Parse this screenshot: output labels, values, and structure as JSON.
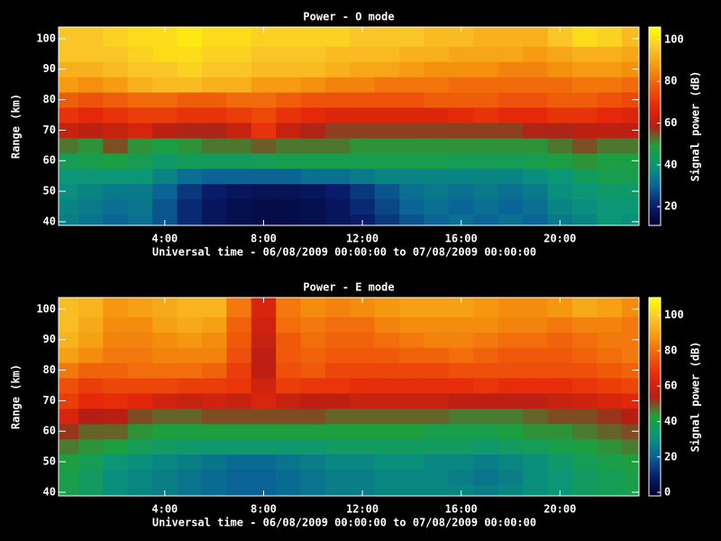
{
  "chart_data": [
    {
      "type": "heatmap",
      "title": "Power - O mode",
      "xlabel": "Universal time - 06/08/2009 00:00:00 to 07/08/2009 00:00:00",
      "ylabel": "Range (km)",
      "colorbar_label": "Signal power (dB)",
      "x": [
        0,
        1,
        2,
        3,
        4,
        5,
        6,
        7,
        8,
        9,
        10,
        11,
        12,
        13,
        14,
        15,
        16,
        17,
        18,
        19,
        20,
        21,
        22,
        23
      ],
      "y": [
        40,
        45,
        50,
        55,
        60,
        65,
        70,
        75,
        80,
        85,
        90,
        95,
        100
      ],
      "xlim": [
        -0.3,
        23.2
      ],
      "ylim": [
        38.8,
        103.8
      ],
      "xticks": [
        {
          "value": 4,
          "label": "4:00"
        },
        {
          "value": 8,
          "label": "8:00"
        },
        {
          "value": 12,
          "label": "12:00"
        },
        {
          "value": 16,
          "label": "16:00"
        },
        {
          "value": 20,
          "label": "20:00"
        }
      ],
      "yticks": [
        40,
        50,
        60,
        70,
        80,
        90,
        100
      ],
      "clim": [
        11,
        106
      ],
      "cticks": [
        20,
        40,
        60,
        80,
        100
      ],
      "colormap": [
        "#00002a",
        "#0a1e6e",
        "#0a6496",
        "#0a9678",
        "#1ea03c",
        "#b41e14",
        "#e6280a",
        "#f05a0a",
        "#f5960f",
        "#fac828",
        "#ffff00"
      ],
      "z": [
        [
          35,
          33,
          30,
          32,
          28,
          22,
          18,
          16,
          15,
          15,
          16,
          18,
          20,
          24,
          28,
          30,
          32,
          30,
          32,
          30,
          34,
          36,
          40,
          38
        ],
        [
          36,
          34,
          32,
          33,
          28,
          22,
          18,
          16,
          15,
          15,
          16,
          18,
          22,
          26,
          30,
          32,
          30,
          32,
          30,
          32,
          36,
          38,
          40,
          40
        ],
        [
          38,
          36,
          34,
          34,
          30,
          24,
          20,
          18,
          17,
          17,
          18,
          20,
          24,
          28,
          32,
          34,
          32,
          34,
          32,
          34,
          38,
          40,
          42,
          42
        ],
        [
          40,
          40,
          40,
          40,
          36,
          32,
          30,
          30,
          30,
          30,
          32,
          32,
          34,
          36,
          36,
          36,
          36,
          36,
          36,
          38,
          40,
          44,
          46,
          46
        ],
        [
          45,
          46,
          48,
          45,
          42,
          44,
          44,
          44,
          45,
          46,
          46,
          46,
          46,
          46,
          46,
          46,
          45,
          45,
          45,
          46,
          48,
          50,
          48,
          48
        ],
        [
          52,
          50,
          55,
          50,
          48,
          50,
          52,
          52,
          54,
          52,
          52,
          52,
          50,
          50,
          50,
          50,
          50,
          50,
          50,
          50,
          52,
          55,
          52,
          52
        ],
        [
          62,
          60,
          62,
          65,
          60,
          58,
          58,
          62,
          70,
          62,
          58,
          56,
          56,
          56,
          56,
          56,
          56,
          56,
          56,
          58,
          58,
          60,
          60,
          60
        ],
        [
          70,
          68,
          70,
          72,
          72,
          70,
          70,
          72,
          74,
          70,
          68,
          66,
          66,
          66,
          66,
          66,
          68,
          70,
          68,
          68,
          70,
          70,
          68,
          66
        ],
        [
          78,
          76,
          78,
          80,
          80,
          78,
          78,
          80,
          80,
          78,
          76,
          76,
          76,
          76,
          76,
          78,
          78,
          78,
          76,
          76,
          78,
          78,
          76,
          74
        ],
        [
          88,
          86,
          88,
          92,
          94,
          94,
          92,
          92,
          88,
          88,
          86,
          84,
          84,
          82,
          82,
          82,
          80,
          80,
          80,
          80,
          80,
          82,
          82,
          80
        ],
        [
          92,
          92,
          94,
          96,
          96,
          98,
          96,
          96,
          94,
          94,
          94,
          92,
          90,
          90,
          88,
          86,
          86,
          86,
          84,
          84,
          86,
          88,
          88,
          86
        ],
        [
          96,
          96,
          96,
          98,
          100,
          100,
          98,
          98,
          96,
          96,
          96,
          94,
          94,
          94,
          92,
          92,
          90,
          90,
          90,
          88,
          90,
          92,
          92,
          90
        ],
        [
          96,
          96,
          98,
          100,
          100,
          102,
          100,
          100,
          98,
          98,
          98,
          98,
          96,
          96,
          96,
          94,
          94,
          92,
          92,
          92,
          96,
          100,
          98,
          94
        ]
      ]
    },
    {
      "type": "heatmap",
      "title": "Power - E mode",
      "xlabel": "Universal time - 06/08/2009 00:00:00 to 07/08/2009 00:00:00",
      "ylabel": "Range (km)",
      "colorbar_label": "Signal power (dB)",
      "x": [
        0,
        1,
        2,
        3,
        4,
        5,
        6,
        7,
        8,
        9,
        10,
        11,
        12,
        13,
        14,
        15,
        16,
        17,
        18,
        19,
        20,
        21,
        22,
        23
      ],
      "y": [
        40,
        45,
        50,
        55,
        60,
        65,
        70,
        75,
        80,
        85,
        90,
        95,
        100
      ],
      "xlim": [
        -0.3,
        23.2
      ],
      "ylim": [
        38.8,
        103.8
      ],
      "xticks": [
        {
          "value": 4,
          "label": "4:00"
        },
        {
          "value": 8,
          "label": "8:00"
        },
        {
          "value": 12,
          "label": "12:00"
        },
        {
          "value": 16,
          "label": "16:00"
        },
        {
          "value": 20,
          "label": "20:00"
        }
      ],
      "yticks": [
        40,
        50,
        60,
        70,
        80,
        90,
        100
      ],
      "clim": [
        -2,
        110
      ],
      "cticks": [
        0,
        20,
        40,
        60,
        80,
        100
      ],
      "colormap": [
        "#00002a",
        "#0a1e6e",
        "#0a6496",
        "#0a9678",
        "#1ea03c",
        "#b41e14",
        "#e6280a",
        "#f05a0a",
        "#f5960f",
        "#fac828",
        "#ffff00"
      ],
      "z": [
        [
          40,
          36,
          30,
          28,
          26,
          24,
          22,
          20,
          20,
          22,
          24,
          26,
          26,
          28,
          28,
          28,
          28,
          26,
          28,
          30,
          32,
          36,
          38,
          40
        ],
        [
          40,
          36,
          30,
          28,
          26,
          24,
          22,
          20,
          20,
          22,
          24,
          26,
          26,
          28,
          28,
          28,
          26,
          24,
          26,
          30,
          32,
          36,
          38,
          40
        ],
        [
          42,
          38,
          32,
          30,
          28,
          26,
          24,
          22,
          22,
          24,
          26,
          28,
          28,
          30,
          30,
          28,
          28,
          26,
          28,
          30,
          34,
          38,
          40,
          42
        ],
        [
          46,
          44,
          42,
          38,
          36,
          34,
          34,
          34,
          34,
          34,
          34,
          36,
          36,
          36,
          36,
          36,
          36,
          34,
          36,
          38,
          40,
          42,
          44,
          46
        ],
        [
          52,
          48,
          48,
          44,
          42,
          42,
          42,
          42,
          42,
          42,
          42,
          42,
          42,
          42,
          42,
          40,
          40,
          40,
          42,
          44,
          44,
          46,
          48,
          50
        ],
        [
          62,
          54,
          55,
          50,
          48,
          48,
          50,
          50,
          50,
          50,
          50,
          48,
          48,
          48,
          48,
          48,
          46,
          46,
          46,
          48,
          50,
          50,
          52,
          54
        ],
        [
          70,
          65,
          66,
          64,
          60,
          58,
          60,
          58,
          62,
          58,
          56,
          56,
          58,
          58,
          58,
          58,
          56,
          56,
          56,
          56,
          58,
          60,
          62,
          64
        ],
        [
          74,
          70,
          72,
          72,
          72,
          70,
          70,
          68,
          60,
          70,
          68,
          68,
          66,
          66,
          66,
          66,
          66,
          68,
          66,
          66,
          66,
          68,
          70,
          72
        ],
        [
          82,
          78,
          78,
          80,
          80,
          80,
          78,
          70,
          56,
          74,
          76,
          72,
          72,
          72,
          72,
          72,
          74,
          74,
          74,
          74,
          74,
          74,
          76,
          78
        ],
        [
          90,
          86,
          82,
          82,
          84,
          84,
          84,
          74,
          56,
          76,
          78,
          76,
          76,
          76,
          78,
          78,
          80,
          78,
          76,
          76,
          76,
          78,
          80,
          82
        ],
        [
          94,
          90,
          84,
          84,
          86,
          88,
          86,
          76,
          58,
          76,
          80,
          78,
          78,
          80,
          82,
          84,
          84,
          82,
          80,
          80,
          78,
          80,
          82,
          82
        ],
        [
          96,
          92,
          86,
          86,
          90,
          92,
          90,
          78,
          60,
          80,
          82,
          80,
          80,
          84,
          86,
          86,
          86,
          86,
          84,
          84,
          82,
          84,
          84,
          82
        ],
        [
          96,
          94,
          88,
          90,
          92,
          94,
          94,
          82,
          62,
          82,
          86,
          84,
          86,
          88,
          90,
          90,
          90,
          88,
          86,
          86,
          88,
          92,
          90,
          86
        ]
      ]
    }
  ]
}
